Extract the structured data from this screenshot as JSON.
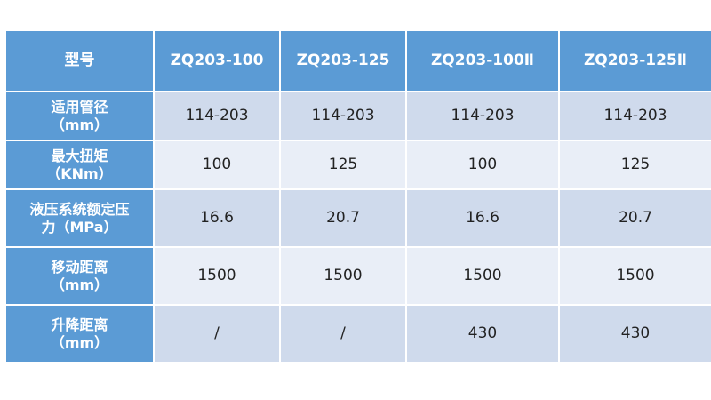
{
  "table": {
    "header": [
      "型号",
      "ZQ203-100",
      "ZQ203-125",
      "ZQ203-100Ⅱ",
      "ZQ203-125Ⅱ"
    ],
    "rows": [
      {
        "label": [
          "适用管径",
          "（mm）"
        ],
        "values": [
          "114-203",
          "114-203",
          "114-203",
          "114-203"
        ]
      },
      {
        "label": [
          "最大扭矩",
          "（KNm）"
        ],
        "values": [
          "100",
          "125",
          "100",
          "125"
        ]
      },
      {
        "label": [
          "液压系统额定压",
          "力（MPa）"
        ],
        "values": [
          "16.6",
          "20.7",
          "16.6",
          "20.7"
        ]
      },
      {
        "label": [
          "移动距离",
          "（mm）"
        ],
        "values": [
          "1500",
          "1500",
          "1500",
          "1500"
        ]
      },
      {
        "label": [
          "升降距离",
          "（mm）"
        ],
        "values": [
          "/",
          "/",
          "430",
          "430"
        ]
      }
    ]
  },
  "colors": {
    "header_bg": "#5b9bd5",
    "row_bg_dark": "#cfdaec",
    "row_bg_light": "#e9eef7"
  }
}
